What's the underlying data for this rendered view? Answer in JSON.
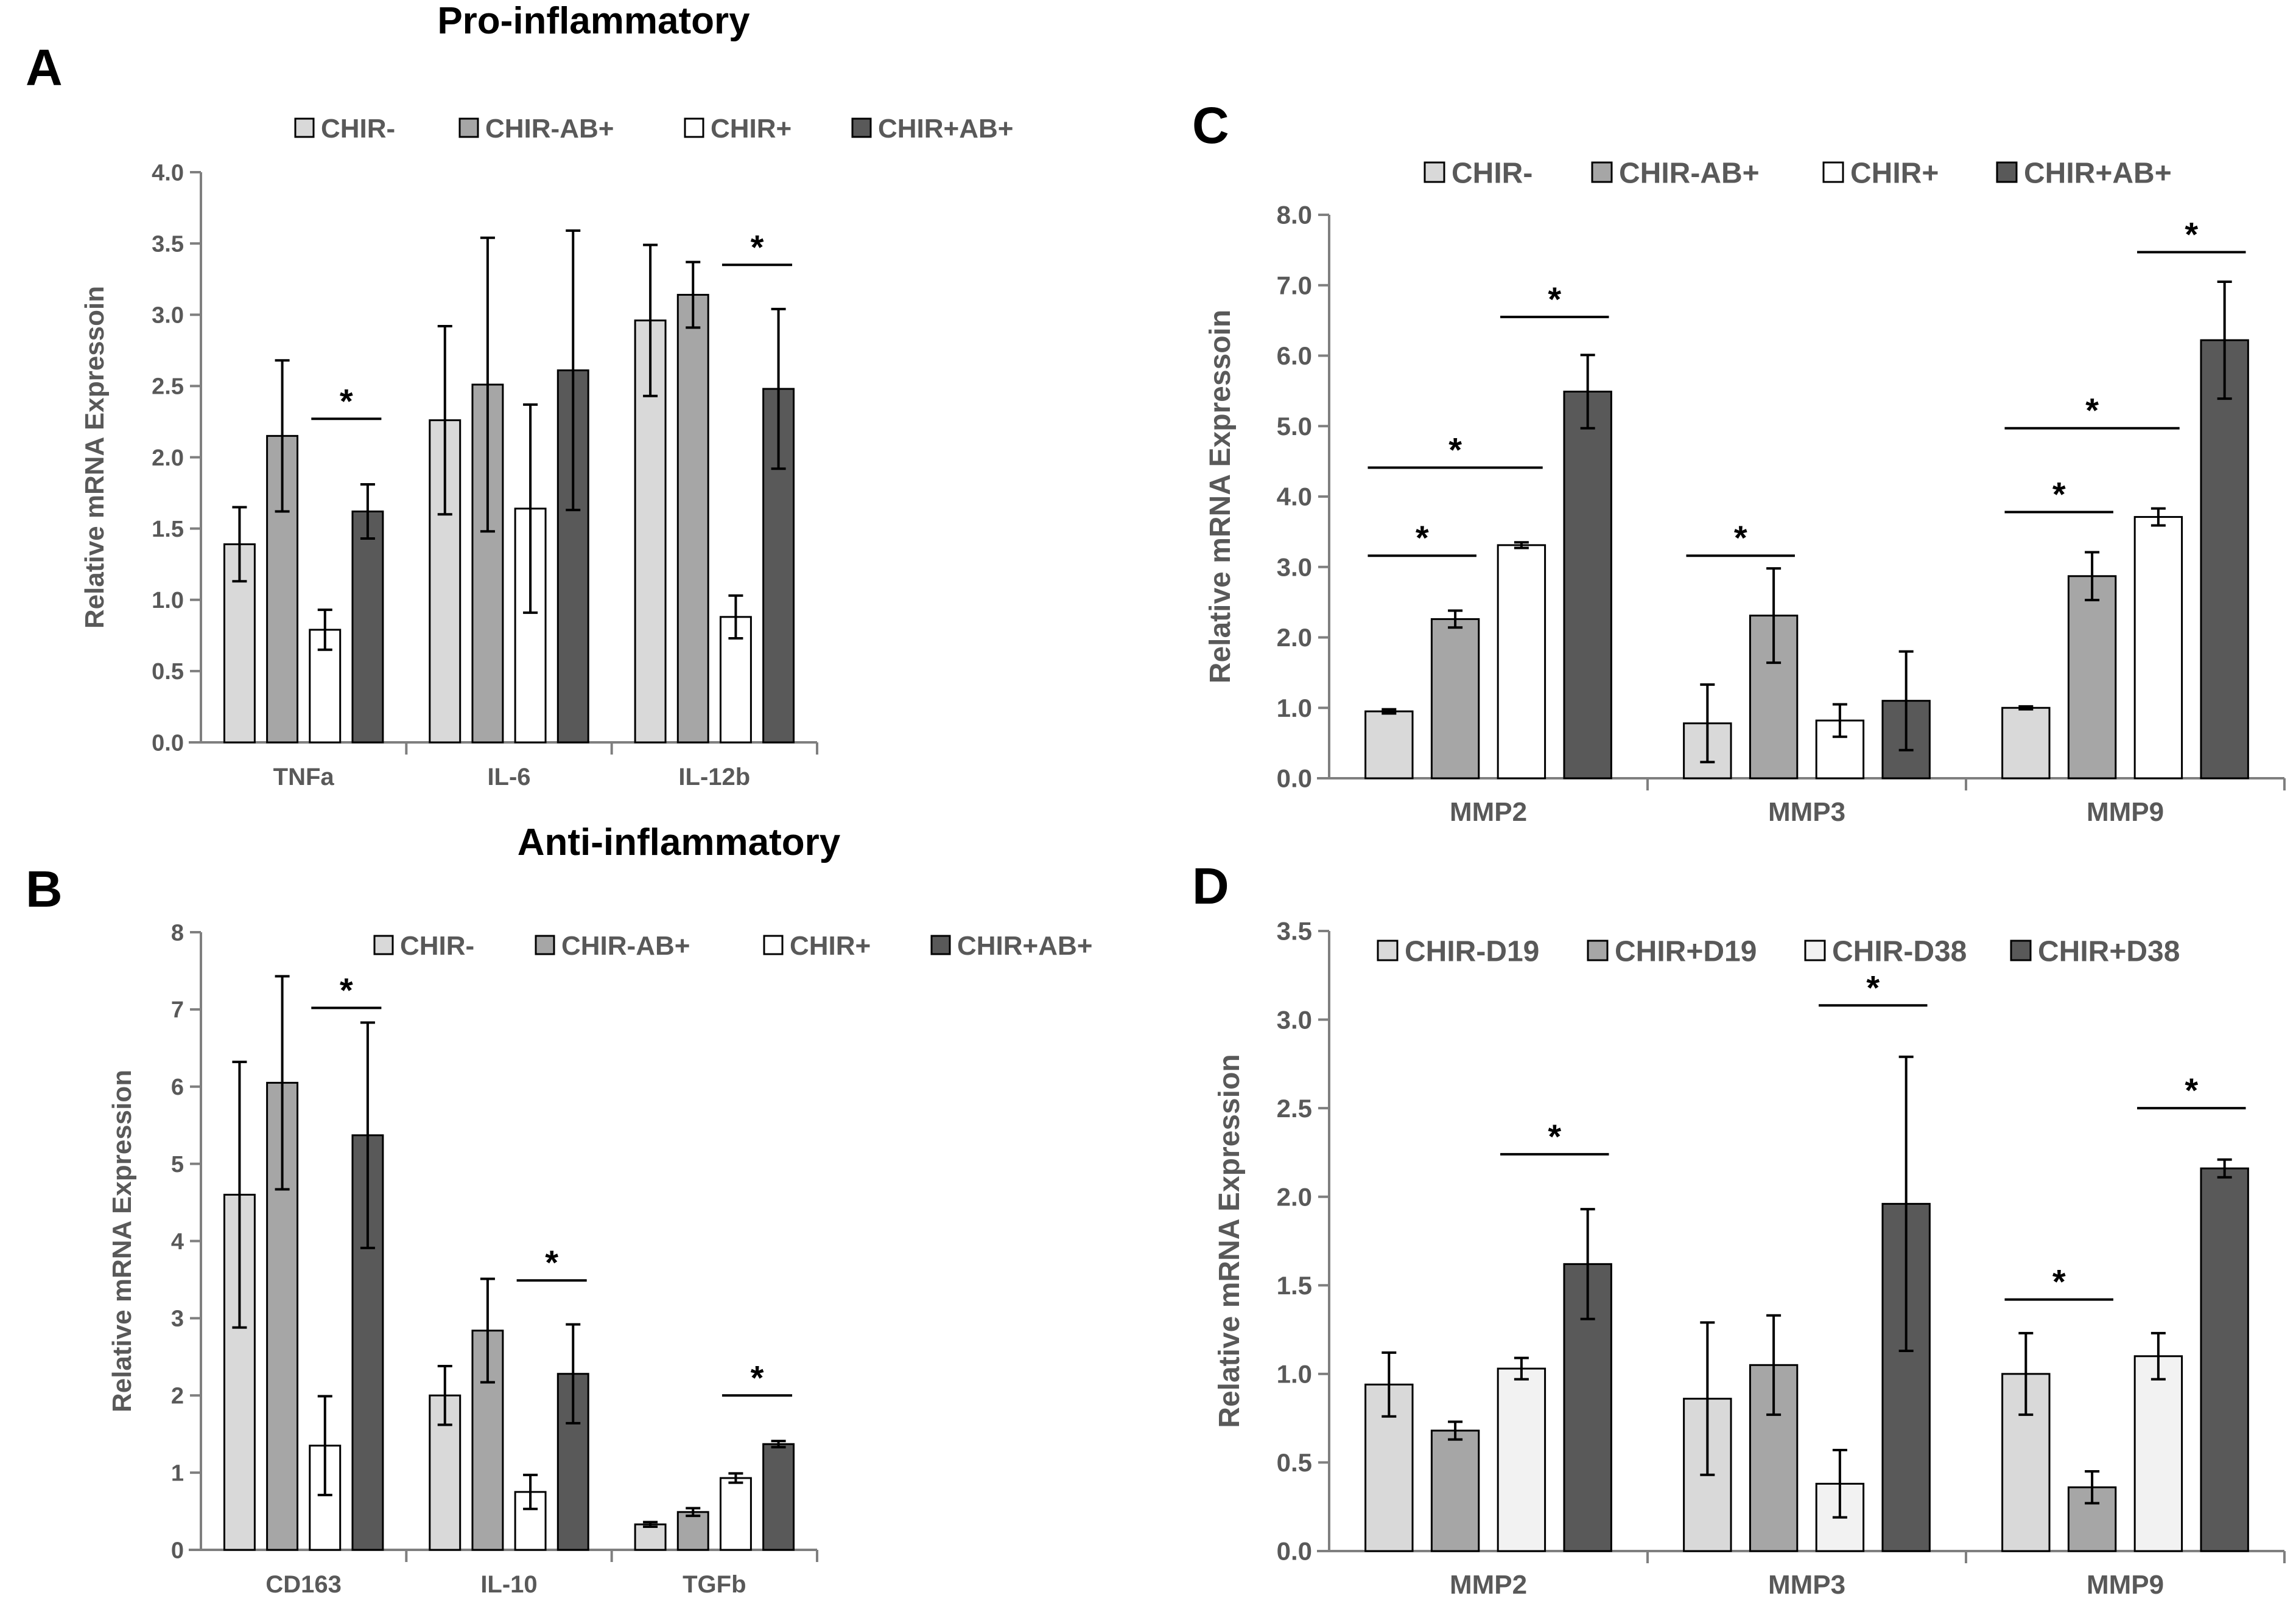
{
  "colors": {
    "CHIR-": "#d9d9d9",
    "CHIR-AB+": "#a6a6a6",
    "CHIR+": "#ffffff",
    "CHIR+AB+": "#595959",
    "CHIR-D19": "#d9d9d9",
    "CHIR+D19": "#a6a6a6",
    "CHIR-D38": "#f2f2f2",
    "CHIR+D38": "#595959",
    "axis": "#7f7f7f",
    "text": "#595959",
    "bar_stroke": "#000000"
  },
  "chart_data": [
    {
      "id": "A",
      "panel_letter": "A",
      "title": "Pro-inflammatory",
      "type": "bar",
      "ylabel": "Relative mRNA Expressoin",
      "xlabel": "",
      "ylim": [
        0,
        4
      ],
      "yticks": [
        "0.0",
        "0.5",
        "1.0",
        "1.5",
        "2.0",
        "2.5",
        "3.0",
        "3.5",
        "4.0"
      ],
      "grid": false,
      "legend_position": "top",
      "categories": [
        "TNFa",
        "IL-6",
        "IL-12b"
      ],
      "series": [
        {
          "name": "CHIR-",
          "values": [
            1.39,
            2.26,
            2.96
          ],
          "errors": [
            0.26,
            0.66,
            0.53
          ]
        },
        {
          "name": "CHIR-AB+",
          "values": [
            2.15,
            2.51,
            3.14
          ],
          "errors": [
            0.53,
            1.03,
            0.23
          ]
        },
        {
          "name": "CHIR+",
          "values": [
            0.79,
            1.64,
            0.88
          ],
          "errors": [
            0.14,
            0.73,
            0.15
          ]
        },
        {
          "name": "CHIR+AB+",
          "values": [
            1.62,
            2.61,
            2.48
          ],
          "errors": [
            0.19,
            0.98,
            0.56
          ]
        }
      ],
      "significance": [
        {
          "category": 0,
          "from": 2,
          "to": 3,
          "y": 2.27,
          "label": "*"
        },
        {
          "category": 2,
          "from": 2,
          "to": 3,
          "y": 3.35,
          "label": "*"
        }
      ]
    },
    {
      "id": "B",
      "panel_letter": "B",
      "title": "Anti-inflammatory",
      "type": "bar",
      "ylabel": "Relative mRNA Expression",
      "xlabel": "",
      "ylim": [
        0,
        8
      ],
      "yticks": [
        "0",
        "1",
        "2",
        "3",
        "4",
        "5",
        "6",
        "7",
        "8"
      ],
      "grid": false,
      "legend_position": "top",
      "categories": [
        "CD163",
        "IL-10",
        "TGFb"
      ],
      "series": [
        {
          "name": "CHIR-",
          "values": [
            4.6,
            2.0,
            0.33
          ],
          "errors": [
            1.72,
            0.38,
            0.03
          ]
        },
        {
          "name": "CHIR-AB+",
          "values": [
            6.05,
            2.84,
            0.49
          ],
          "errors": [
            1.38,
            0.67,
            0.05
          ]
        },
        {
          "name": "CHIR+",
          "values": [
            1.35,
            0.75,
            0.93
          ],
          "errors": [
            0.64,
            0.22,
            0.06
          ]
        },
        {
          "name": "CHIR+AB+",
          "values": [
            5.37,
            2.28,
            1.37
          ],
          "errors": [
            1.46,
            0.64,
            0.04
          ]
        }
      ],
      "significance": [
        {
          "category": 0,
          "from": 2,
          "to": 3,
          "y": 7.02,
          "label": "*"
        },
        {
          "category": 1,
          "from": 2,
          "to": 3,
          "y": 3.49,
          "label": "*"
        },
        {
          "category": 2,
          "from": 2,
          "to": 3,
          "y": 2.0,
          "label": "*"
        }
      ]
    },
    {
      "id": "C",
      "panel_letter": "C",
      "title": "",
      "type": "bar",
      "ylabel": "Relative mRNA Expressoin",
      "xlabel": "",
      "ylim": [
        0,
        8
      ],
      "yticks": [
        "0.0",
        "1.0",
        "2.0",
        "3.0",
        "4.0",
        "5.0",
        "6.0",
        "7.0",
        "8.0"
      ],
      "grid": false,
      "legend_position": "top",
      "categories": [
        "MMP2",
        "MMP3",
        "MMP9"
      ],
      "series": [
        {
          "name": "CHIR-",
          "values": [
            0.95,
            0.78,
            1.0
          ],
          "errors": [
            0.03,
            0.55,
            0.02
          ]
        },
        {
          "name": "CHIR-AB+",
          "values": [
            2.26,
            2.31,
            2.87
          ],
          "errors": [
            0.12,
            0.67,
            0.34
          ]
        },
        {
          "name": "CHIR+",
          "values": [
            3.31,
            0.82,
            3.71
          ],
          "errors": [
            0.04,
            0.23,
            0.12
          ]
        },
        {
          "name": "CHIR+AB+",
          "values": [
            5.49,
            1.1,
            6.22
          ],
          "errors": [
            0.52,
            0.7,
            0.83
          ]
        }
      ],
      "significance": [
        {
          "category": 0,
          "from": 0,
          "to": 1,
          "y": 3.16,
          "label": "*"
        },
        {
          "category": 0,
          "from": 0,
          "to": 2,
          "y": 4.41,
          "label": "*"
        },
        {
          "category": 0,
          "from": 2,
          "to": 3,
          "y": 6.55,
          "label": "*"
        },
        {
          "category": 1,
          "from": 0,
          "to": 1,
          "y": 3.16,
          "label": "*"
        },
        {
          "category": 2,
          "from": 0,
          "to": 1,
          "y": 3.78,
          "label": "*"
        },
        {
          "category": 2,
          "from": 0,
          "to": 2,
          "y": 4.97,
          "label": "*"
        },
        {
          "category": 2,
          "from": 2,
          "to": 3,
          "y": 7.47,
          "label": "*"
        }
      ]
    },
    {
      "id": "D",
      "panel_letter": "D",
      "title": "",
      "type": "bar",
      "ylabel": "Relative mRNA Expression",
      "xlabel": "",
      "ylim": [
        0,
        3.5
      ],
      "yticks": [
        "0.0",
        "0.5",
        "1.0",
        "1.5",
        "2.0",
        "2.5",
        "3.0",
        "3.5"
      ],
      "grid": false,
      "legend_position": "top",
      "categories": [
        "MMP2",
        "MMP3",
        "MMP9"
      ],
      "series": [
        {
          "name": "CHIR-D19",
          "values": [
            0.94,
            0.86,
            1.0
          ],
          "errors": [
            0.18,
            0.43,
            0.23
          ]
        },
        {
          "name": "CHIR+D19",
          "values": [
            0.68,
            1.05,
            0.36
          ],
          "errors": [
            0.05,
            0.28,
            0.09
          ]
        },
        {
          "name": "CHIR-D38",
          "values": [
            1.03,
            0.38,
            1.1
          ],
          "errors": [
            0.06,
            0.19,
            0.13
          ]
        },
        {
          "name": "CHIR+D38",
          "values": [
            1.62,
            1.96,
            2.16
          ],
          "errors": [
            0.31,
            0.83,
            0.05
          ]
        }
      ],
      "significance": [
        {
          "category": 0,
          "from": 2,
          "to": 3,
          "y": 2.24,
          "label": "*"
        },
        {
          "category": 1,
          "from": 2,
          "to": 3,
          "y": 3.08,
          "label": "*"
        },
        {
          "category": 2,
          "from": 0,
          "to": 1,
          "y": 1.42,
          "label": "*"
        },
        {
          "category": 2,
          "from": 2,
          "to": 3,
          "y": 2.5,
          "label": "*"
        }
      ]
    }
  ]
}
